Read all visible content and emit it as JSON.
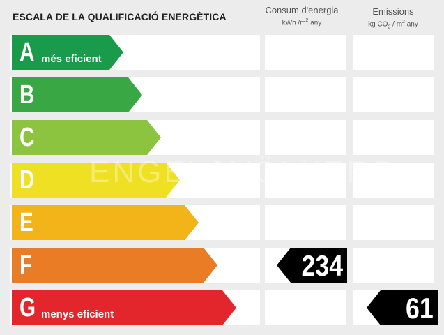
{
  "title": "ESCALA DE LA QUALIFICACIÓ ENERGÈTICA",
  "columns": {
    "consum": {
      "label": "Consum d'energia",
      "unit_prefix": "kWh /m",
      "unit_exp": "2",
      "unit_suffix": " any"
    },
    "emissions": {
      "label": "Emissions",
      "unit_prefix": "kg CO",
      "unit_sub": "2",
      "unit_mid": " / m",
      "unit_exp": "2",
      "unit_suffix": " any"
    }
  },
  "ratings": [
    {
      "letter": "A",
      "description": "més eficient",
      "color": "#1a9a4b"
    },
    {
      "letter": "B",
      "description": "",
      "color": "#39a844"
    },
    {
      "letter": "C",
      "description": "",
      "color": "#8cc43f"
    },
    {
      "letter": "D",
      "description": "",
      "color": "#f0e023"
    },
    {
      "letter": "E",
      "description": "",
      "color": "#f2b418"
    },
    {
      "letter": "F",
      "description": "",
      "color": "#e97c24"
    },
    {
      "letter": "G",
      "description": "menys eficient",
      "color": "#e2262b"
    }
  ],
  "consumption": {
    "rating": "F",
    "value": "234"
  },
  "emissions": {
    "rating": "G",
    "value": "61"
  },
  "watermark": "ENGEL&VÖLKERS"
}
